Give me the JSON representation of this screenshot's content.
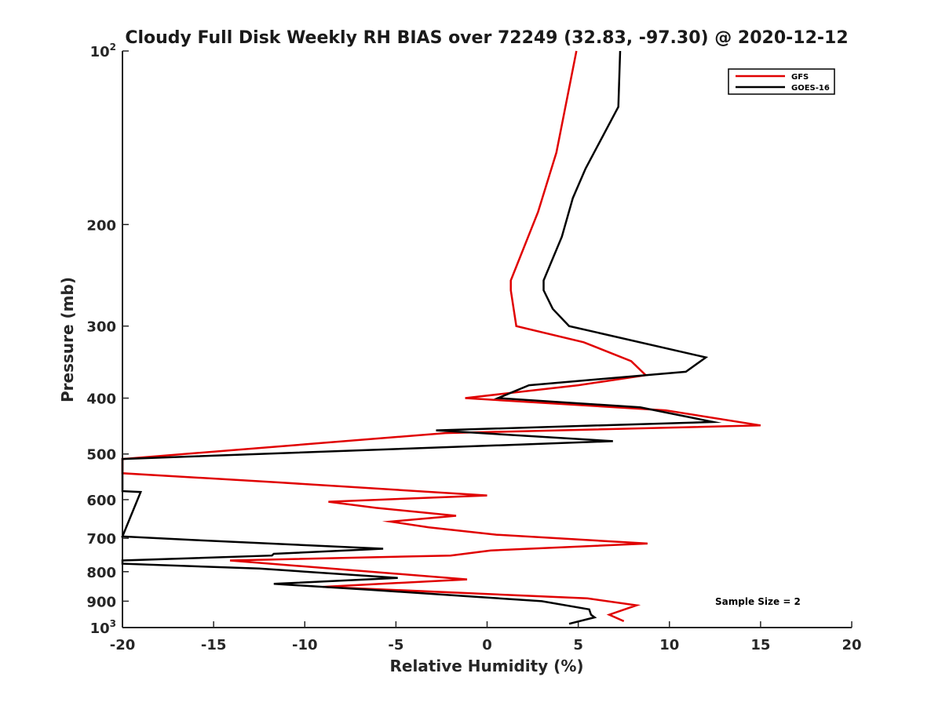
{
  "chart_data": {
    "type": "line",
    "title": "Cloudy Full Disk Weekly RH BIAS over 72249 (32.83, -97.30) @ 2020-12-12",
    "xlabel": "Relative Humidity (%)",
    "ylabel": "Pressure (mb)",
    "xlim": [
      -20,
      20
    ],
    "ylim": [
      100,
      1000
    ],
    "y_scale": "log",
    "y_reversed": true,
    "grid": false,
    "legend_position": "top-right",
    "x_ticks": [
      "-20",
      "-15",
      "-10",
      "-5",
      "0",
      "5",
      "10",
      "15",
      "20"
    ],
    "y_ticks": [
      {
        "base": "10",
        "exp": "2",
        "text": ""
      },
      {
        "base": "",
        "exp": "",
        "text": "200"
      },
      {
        "base": "",
        "exp": "",
        "text": "300"
      },
      {
        "base": "",
        "exp": "",
        "text": "400"
      },
      {
        "base": "",
        "exp": "",
        "text": "500"
      },
      {
        "base": "",
        "exp": "",
        "text": "600"
      },
      {
        "base": "",
        "exp": "",
        "text": "700"
      },
      {
        "base": "",
        "exp": "",
        "text": "800"
      },
      {
        "base": "",
        "exp": "",
        "text": "900"
      },
      {
        "base": "10",
        "exp": "3",
        "text": ""
      }
    ],
    "y_tick_values": [
      100,
      200,
      300,
      400,
      500,
      600,
      700,
      800,
      900,
      1000
    ],
    "series": [
      {
        "name": "GFS",
        "color": "#e00000",
        "points": [
          [
            4.9,
            100
          ],
          [
            3.8,
            150
          ],
          [
            2.8,
            190
          ],
          [
            1.3,
            250
          ],
          [
            1.3,
            260
          ],
          [
            1.6,
            300
          ],
          [
            5.3,
            320
          ],
          [
            7.9,
            345
          ],
          [
            8.7,
            365
          ],
          [
            5.0,
            380
          ],
          [
            -1.2,
            400
          ],
          [
            9.8,
            420
          ],
          [
            15.0,
            446
          ],
          [
            -2.3,
            460
          ],
          [
            -20.0,
            510
          ],
          [
            -20.0,
            540
          ],
          [
            -11.5,
            560
          ],
          [
            0.0,
            590
          ],
          [
            -8.7,
            605
          ],
          [
            -6.1,
            620
          ],
          [
            -1.7,
            640
          ],
          [
            -5.3,
            655
          ],
          [
            -3.2,
            670
          ],
          [
            0.5,
            690
          ],
          [
            8.8,
            715
          ],
          [
            0.2,
            735
          ],
          [
            -2.0,
            750
          ],
          [
            -14.1,
            765
          ],
          [
            -1.1,
            825
          ],
          [
            -9.0,
            850
          ],
          [
            5.5,
            890
          ],
          [
            8.2,
            915
          ],
          [
            6.7,
            950
          ],
          [
            7.5,
            975
          ]
        ]
      },
      {
        "name": "GOES-16",
        "color": "#000000",
        "points": [
          [
            7.3,
            100
          ],
          [
            7.2,
            125
          ],
          [
            5.4,
            160
          ],
          [
            4.7,
            180
          ],
          [
            4.1,
            210
          ],
          [
            3.1,
            250
          ],
          [
            3.1,
            260
          ],
          [
            3.6,
            280
          ],
          [
            4.5,
            300
          ],
          [
            12.0,
            340
          ],
          [
            10.9,
            360
          ],
          [
            2.3,
            380
          ],
          [
            0.6,
            400
          ],
          [
            8.4,
            415
          ],
          [
            12.4,
            440
          ],
          [
            -2.8,
            455
          ],
          [
            6.9,
            475
          ],
          [
            -20.0,
            510
          ],
          [
            -20.0,
            580
          ],
          [
            -19.0,
            582
          ],
          [
            -20.0,
            695
          ],
          [
            -16.1,
            705
          ],
          [
            -5.7,
            730
          ],
          [
            -11.7,
            745
          ],
          [
            -11.8,
            750
          ],
          [
            -20.0,
            765
          ],
          [
            -20.0,
            775
          ],
          [
            -12.5,
            790
          ],
          [
            -4.9,
            820
          ],
          [
            -11.7,
            840
          ],
          [
            -6.4,
            860
          ],
          [
            3.0,
            900
          ],
          [
            5.6,
            930
          ],
          [
            5.7,
            950
          ],
          [
            5.9,
            960
          ],
          [
            4.5,
            985
          ]
        ]
      }
    ],
    "annotation": "Sample Size = 2"
  }
}
